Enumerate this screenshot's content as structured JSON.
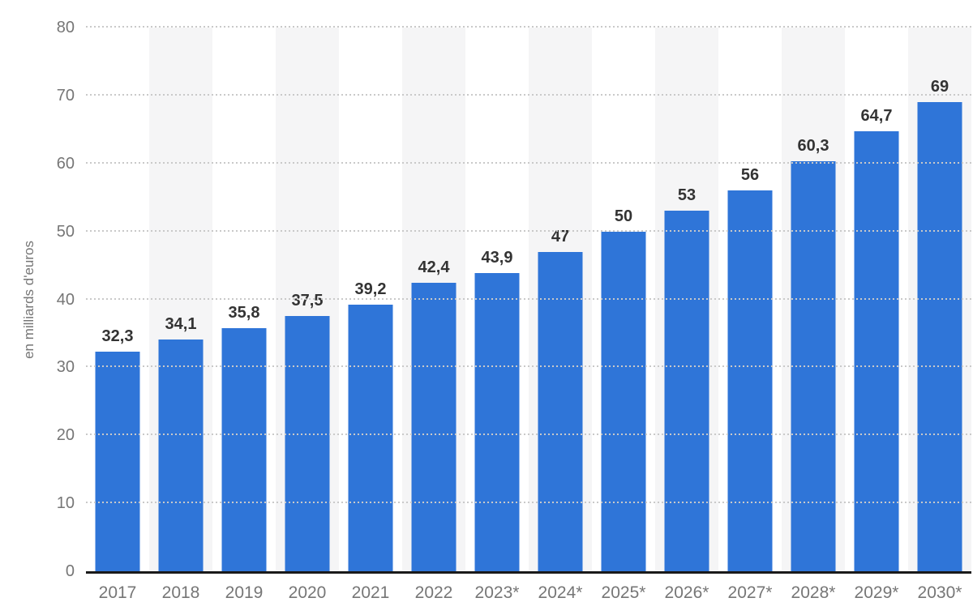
{
  "chart_data": {
    "type": "bar",
    "title": "",
    "categories": [
      "2017",
      "2018",
      "2019",
      "2020",
      "2021",
      "2022",
      "2023*",
      "2024*",
      "2025*",
      "2026*",
      "2027*",
      "2028*",
      "2029*",
      "2030*"
    ],
    "values": [
      32.3,
      34.1,
      35.8,
      37.5,
      39.2,
      42.4,
      43.9,
      47,
      50,
      53,
      56,
      60.3,
      64.7,
      69
    ],
    "value_labels": [
      "32,3",
      "34,1",
      "35,8",
      "37,5",
      "39,2",
      "42,4",
      "43,9",
      "47",
      "50",
      "53",
      "56",
      "60,3",
      "64,7",
      "69"
    ],
    "xlabel": "",
    "ylabel": "en milliards d'euros",
    "ylim": [
      0,
      80
    ],
    "yticks": [
      0,
      10,
      20,
      30,
      40,
      50,
      60,
      70,
      80
    ],
    "grid": "horizontal-dotted",
    "legend": "none",
    "column_stripes": "alternating light bands behind 2018, 2020, 2022, 2024*, 2026*, 2028*, 2030*",
    "colors": {
      "bar": "#2f75d8",
      "stripe": "#f5f5f6",
      "grid_dot": "#c9c9c9",
      "tick_label": "#767676",
      "value_label": "#333333",
      "axis_line": "#1a1a1a",
      "background": "#ffffff"
    }
  }
}
